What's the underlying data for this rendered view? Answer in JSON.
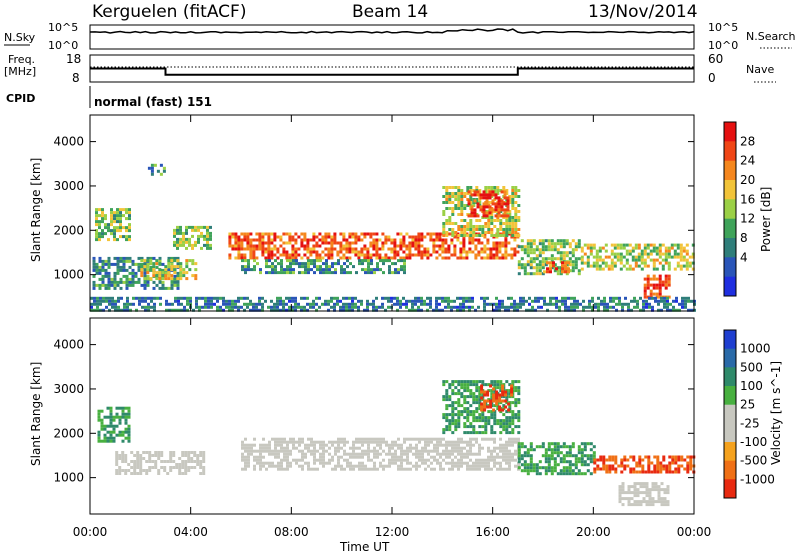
{
  "header": {
    "station": "Kerguelen (fitACF)",
    "beam": "Beam 14",
    "date": "13/Nov/2014"
  },
  "top_panels": {
    "nsky_label": "N.Sky",
    "nsearch_label": "N.Search",
    "nsky_ticks": [
      "10^5",
      "10^0"
    ],
    "nsearch_ticks": [
      "10^5",
      "10^0"
    ],
    "freq_label": "Freq.",
    "freq_unit": "[MHz]",
    "freq_ticks": [
      "18",
      "8"
    ],
    "nave_label": "Nave",
    "nave_ticks": [
      "60",
      "0"
    ],
    "cpid_label": "CPID",
    "cpid_text": "normal (fast) 151"
  },
  "chart_data": [
    {
      "type": "heatmap",
      "title": "",
      "xlabel": "Time UT",
      "ylabel": "Slant Range [km]",
      "xlim": [
        0,
        24
      ],
      "ylim": [
        180,
        4600
      ],
      "x_ticks": [
        "00:00",
        "04:00",
        "08:00",
        "12:00",
        "16:00",
        "20:00",
        "00:00"
      ],
      "y_ticks": [
        1000,
        2000,
        3000,
        4000
      ],
      "colorbar": {
        "label": "Power [dB]",
        "tick_labels": [
          "28",
          "24",
          "20",
          "16",
          "12",
          "8",
          "4"
        ],
        "range": [
          0,
          30
        ],
        "colors": [
          "#1f2fe0",
          "#2a55b8",
          "#2f7e7a",
          "#3fa35a",
          "#9bd046",
          "#f2c43a",
          "#f5871e",
          "#f04616",
          "#e51010"
        ]
      },
      "echo_regions": [
        {
          "t0": 0.2,
          "t1": 1.6,
          "r0": 1800,
          "r1": 2500,
          "value": 14
        },
        {
          "t0": 0.1,
          "t1": 3.5,
          "r0": 700,
          "r1": 1400,
          "value": 10
        },
        {
          "t0": 2.0,
          "t1": 4.2,
          "r0": 900,
          "r1": 1350,
          "value": 16
        },
        {
          "t0": 3.3,
          "t1": 4.8,
          "r0": 1600,
          "r1": 2100,
          "value": 14
        },
        {
          "t0": 2.3,
          "t1": 2.9,
          "r0": 3250,
          "r1": 3500,
          "value": 10
        },
        {
          "t0": 5.5,
          "t1": 17.0,
          "r0": 1350,
          "r1": 1950,
          "value": 24
        },
        {
          "t0": 6.0,
          "t1": 12.5,
          "r0": 1050,
          "r1": 1350,
          "value": 10
        },
        {
          "t0": 14.0,
          "t1": 17.0,
          "r0": 1900,
          "r1": 3000,
          "value": 16
        },
        {
          "t0": 15.0,
          "t1": 16.6,
          "r0": 2300,
          "r1": 2900,
          "value": 26
        },
        {
          "t0": 17.0,
          "t1": 19.5,
          "r0": 1000,
          "r1": 1800,
          "value": 14
        },
        {
          "t0": 18.0,
          "t1": 19.0,
          "r0": 1050,
          "r1": 1300,
          "value": 24
        },
        {
          "t0": 19.5,
          "t1": 24.0,
          "r0": 1100,
          "r1": 1700,
          "value": 16
        },
        {
          "t0": 22.0,
          "t1": 23.0,
          "r0": 500,
          "r1": 1000,
          "value": 26
        },
        {
          "t0": 0.0,
          "t1": 24.0,
          "r0": 200,
          "r1": 500,
          "value": 8
        }
      ]
    },
    {
      "type": "heatmap",
      "title": "",
      "xlabel": "Time UT",
      "ylabel": "Slant Range [km]",
      "xlim": [
        0,
        24
      ],
      "ylim": [
        180,
        4600
      ],
      "x_ticks": [
        "00:00",
        "04:00",
        "08:00",
        "12:00",
        "16:00",
        "20:00",
        "00:00"
      ],
      "y_ticks": [
        1000,
        2000,
        3000,
        4000
      ],
      "colorbar": {
        "label": "Velocity [m s^-1]",
        "tick_labels": [
          "1000",
          "500",
          "100",
          "25",
          "-25",
          "-100",
          "-500",
          "-1000"
        ],
        "colors": [
          "#1f3fd0",
          "#2a6aa8",
          "#2f8a6a",
          "#48b040",
          "#c8c8c0",
          "#c8c8c0",
          "#f5a21e",
          "#f07016",
          "#e82a10"
        ]
      },
      "echo_regions": [
        {
          "t0": 0.3,
          "t1": 1.5,
          "r0": 1800,
          "r1": 2600,
          "value": 100
        },
        {
          "t0": 1.0,
          "t1": 4.5,
          "r0": 1100,
          "r1": 1600,
          "value": 0
        },
        {
          "t0": 6.0,
          "t1": 17.0,
          "r0": 1200,
          "r1": 1900,
          "value": 0
        },
        {
          "t0": 14.0,
          "t1": 17.0,
          "r0": 2000,
          "r1": 3200,
          "value": 100
        },
        {
          "t0": 15.5,
          "t1": 16.8,
          "r0": 2500,
          "r1": 3100,
          "value": -500
        },
        {
          "t0": 17.0,
          "t1": 20.0,
          "r0": 1100,
          "r1": 1800,
          "value": 100
        },
        {
          "t0": 20.0,
          "t1": 24.0,
          "r0": 1100,
          "r1": 1500,
          "value": -500
        },
        {
          "t0": 21.0,
          "t1": 23.0,
          "r0": 400,
          "r1": 900,
          "value": 0
        }
      ]
    }
  ]
}
